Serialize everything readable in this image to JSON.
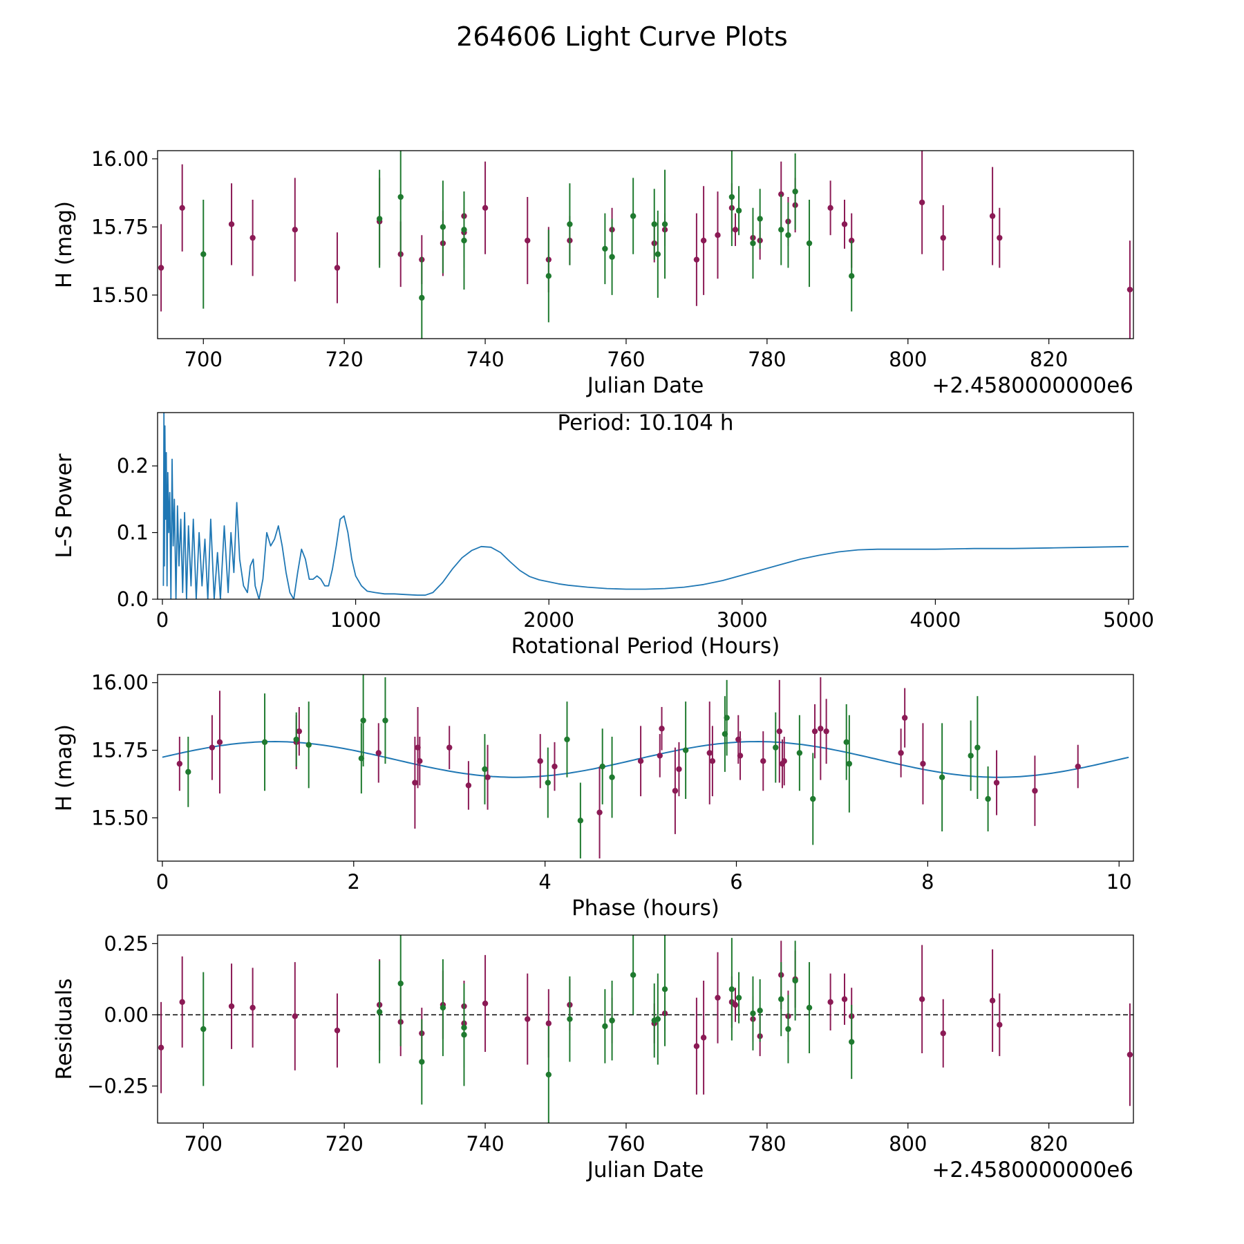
{
  "figure_title": "264606 Light Curve Plots",
  "colors": {
    "purple": "#8b1a55",
    "green": "#1f7a2f",
    "line": "#1f77b4",
    "axis": "#000000"
  },
  "chart_data": [
    {
      "id": "lightcurve",
      "type": "scatter",
      "title": "",
      "xlabel": "Julian Date",
      "ylabel": "H (mag)",
      "offset_text": "+2.4580000000e6",
      "xlim": [
        693.5,
        832
      ],
      "ylim": [
        15.34,
        16.03
      ],
      "xticks": [
        700,
        720,
        740,
        760,
        780,
        800,
        820
      ],
      "yticks": [
        15.5,
        15.75,
        16.0
      ],
      "ytick_labels": [
        "15.50",
        "15.75",
        "16.00"
      ],
      "series": [
        {
          "name": "purple",
          "color": "purple",
          "x": [
            694,
            697,
            704,
            707,
            713,
            719,
            725,
            728,
            731,
            734,
            737,
            737,
            740,
            746,
            749,
            752,
            758,
            764,
            765.5,
            770,
            771,
            773,
            775,
            775.5,
            778,
            779,
            782,
            783,
            784,
            789,
            791,
            792,
            802,
            805,
            812,
            813,
            831.5
          ],
          "y": [
            15.6,
            15.82,
            15.76,
            15.71,
            15.74,
            15.6,
            15.77,
            15.65,
            15.63,
            15.69,
            15.79,
            15.73,
            15.82,
            15.7,
            15.63,
            15.7,
            15.74,
            15.69,
            15.74,
            15.63,
            15.7,
            15.72,
            15.82,
            15.74,
            15.71,
            15.7,
            15.87,
            15.77,
            15.83,
            15.82,
            15.76,
            15.7,
            15.84,
            15.71,
            15.79,
            15.71,
            15.52
          ],
          "err": [
            0.16,
            0.16,
            0.15,
            0.14,
            0.19,
            0.13,
            0.16,
            0.12,
            0.09,
            0.12,
            0.09,
            0.09,
            0.17,
            0.16,
            0.12,
            0.09,
            0.08,
            0.07,
            0.06,
            0.17,
            0.2,
            0.16,
            0.09,
            0.06,
            0.08,
            0.07,
            0.12,
            0.09,
            0.1,
            0.1,
            0.09,
            0.1,
            0.19,
            0.12,
            0.18,
            0.11,
            0.18
          ]
        },
        {
          "name": "green",
          "color": "green",
          "x": [
            700,
            725,
            728,
            731,
            734,
            737,
            737,
            749,
            752,
            757,
            758,
            761,
            764,
            764.5,
            765.5,
            775,
            776,
            778,
            779,
            782,
            783,
            784,
            786,
            792
          ],
          "y": [
            15.65,
            15.78,
            15.86,
            15.49,
            15.75,
            15.7,
            15.74,
            15.57,
            15.76,
            15.67,
            15.64,
            15.79,
            15.76,
            15.65,
            15.76,
            15.86,
            15.81,
            15.69,
            15.78,
            15.74,
            15.72,
            15.88,
            15.69,
            15.57
          ],
          "err": [
            0.2,
            0.18,
            0.22,
            0.15,
            0.17,
            0.18,
            0.14,
            0.17,
            0.15,
            0.13,
            0.14,
            0.14,
            0.13,
            0.16,
            0.2,
            0.18,
            0.09,
            0.13,
            0.11,
            0.13,
            0.12,
            0.14,
            0.16,
            0.13
          ]
        }
      ]
    },
    {
      "id": "periodogram",
      "type": "line",
      "title": "",
      "xlabel": "Rotational Period (Hours)",
      "ylabel": "L-S Power",
      "annotation": "Period: 10.104 h",
      "xlim": [
        -25,
        5025
      ],
      "ylim": [
        0,
        0.28
      ],
      "xticks": [
        0,
        1000,
        2000,
        3000,
        4000,
        5000
      ],
      "yticks": [
        0.0,
        0.1,
        0.2
      ],
      "ytick_labels": [
        "0.0",
        "0.1",
        "0.2"
      ],
      "series": [
        {
          "name": "L-S Power",
          "color": "line",
          "x": [
            5,
            8,
            10,
            13,
            16,
            20,
            24,
            28,
            33,
            38,
            44,
            50,
            56,
            62,
            70,
            78,
            86,
            95,
            105,
            115,
            125,
            135,
            148,
            160,
            175,
            190,
            205,
            220,
            235,
            250,
            268,
            285,
            300,
            320,
            340,
            355,
            370,
            385,
            400,
            420,
            440,
            455,
            470,
            480,
            500,
            520,
            540,
            560,
            580,
            600,
            620,
            640,
            660,
            680,
            700,
            720,
            740,
            760,
            780,
            800,
            820,
            840,
            860,
            880,
            900,
            920,
            940,
            960,
            980,
            1000,
            1030,
            1060,
            1100,
            1150,
            1200,
            1260,
            1320,
            1360,
            1400,
            1450,
            1500,
            1550,
            1600,
            1650,
            1700,
            1750,
            1800,
            1850,
            1900,
            1950,
            2000,
            2050,
            2100,
            2200,
            2300,
            2400,
            2500,
            2600,
            2700,
            2800,
            2900,
            3000,
            3100,
            3200,
            3300,
            3400,
            3500,
            3600,
            3700,
            3800,
            3900,
            4000,
            4200,
            4400,
            4600,
            4800,
            5000
          ],
          "y": [
            0.02,
            0.28,
            0.05,
            0.26,
            0.12,
            0.22,
            0.02,
            0.19,
            0.1,
            0.16,
            0.0,
            0.21,
            0.08,
            0.15,
            0.0,
            0.14,
            0.05,
            0.12,
            0.01,
            0.13,
            0.0,
            0.11,
            0.02,
            0.12,
            0.0,
            0.1,
            0.02,
            0.09,
            0.0,
            0.12,
            0.0,
            0.07,
            0.0,
            0.11,
            0.01,
            0.1,
            0.04,
            0.145,
            0.06,
            0.02,
            0.01,
            0.05,
            0.06,
            0.02,
            0.0,
            0.03,
            0.1,
            0.08,
            0.09,
            0.11,
            0.08,
            0.04,
            0.01,
            0.0,
            0.04,
            0.075,
            0.06,
            0.03,
            0.03,
            0.035,
            0.03,
            0.02,
            0.02,
            0.045,
            0.08,
            0.12,
            0.125,
            0.1,
            0.06,
            0.035,
            0.02,
            0.012,
            0.01,
            0.008,
            0.008,
            0.007,
            0.006,
            0.006,
            0.01,
            0.025,
            0.045,
            0.062,
            0.073,
            0.079,
            0.078,
            0.07,
            0.056,
            0.043,
            0.034,
            0.029,
            0.026,
            0.023,
            0.021,
            0.018,
            0.016,
            0.015,
            0.015,
            0.016,
            0.018,
            0.022,
            0.028,
            0.036,
            0.044,
            0.052,
            0.06,
            0.066,
            0.071,
            0.074,
            0.075,
            0.075,
            0.075,
            0.075,
            0.076,
            0.076,
            0.077,
            0.078,
            0.079
          ]
        }
      ]
    },
    {
      "id": "phased",
      "type": "scatter",
      "title": "",
      "xlabel": "Phase (hours)",
      "ylabel": "H (mag)",
      "xlim": [
        -0.05,
        10.15
      ],
      "ylim": [
        15.34,
        16.03
      ],
      "xticks": [
        0,
        2,
        4,
        6,
        8,
        10
      ],
      "yticks": [
        15.5,
        15.75,
        16.0
      ],
      "ytick_labels": [
        "15.50",
        "15.75",
        "16.00"
      ],
      "series": [
        {
          "name": "purple",
          "color": "purple",
          "x": [
            0.18,
            0.52,
            0.6,
            1.4,
            1.43,
            2.26,
            2.64,
            2.67,
            2.69,
            3.0,
            3.2,
            3.4,
            3.95,
            4.1,
            4.57,
            5.0,
            5.2,
            5.22,
            5.36,
            5.4,
            5.72,
            5.75,
            6.02,
            6.04,
            6.28,
            6.45,
            6.48,
            6.5,
            6.82,
            6.88,
            6.94,
            7.72,
            7.76,
            7.95,
            8.72,
            9.12,
            9.57
          ],
          "y": [
            15.7,
            15.76,
            15.78,
            15.78,
            15.82,
            15.74,
            15.63,
            15.76,
            15.71,
            15.76,
            15.62,
            15.65,
            15.71,
            15.69,
            15.52,
            15.71,
            15.73,
            15.83,
            15.6,
            15.68,
            15.74,
            15.71,
            15.79,
            15.73,
            15.71,
            15.82,
            15.7,
            15.71,
            15.82,
            15.83,
            15.82,
            15.74,
            15.87,
            15.7,
            15.63,
            15.6,
            15.69
          ],
          "err": [
            0.1,
            0.12,
            0.19,
            0.1,
            0.09,
            0.11,
            0.17,
            0.15,
            0.09,
            0.08,
            0.09,
            0.12,
            0.1,
            0.09,
            0.17,
            0.13,
            0.08,
            0.08,
            0.16,
            0.1,
            0.19,
            0.13,
            0.09,
            0.09,
            0.11,
            0.19,
            0.09,
            0.09,
            0.1,
            0.19,
            0.12,
            0.09,
            0.11,
            0.15,
            0.12,
            0.13,
            0.08
          ]
        },
        {
          "name": "green",
          "color": "green",
          "x": [
            0.27,
            1.07,
            1.4,
            1.53,
            2.08,
            2.1,
            2.33,
            3.37,
            4.03,
            4.23,
            4.37,
            4.6,
            4.7,
            5.47,
            5.88,
            5.9,
            6.41,
            6.66,
            6.8,
            7.15,
            7.18,
            8.15,
            8.45,
            8.52,
            8.63
          ],
          "y": [
            15.67,
            15.78,
            15.79,
            15.77,
            15.72,
            15.86,
            15.86,
            15.68,
            15.63,
            15.79,
            15.49,
            15.69,
            15.65,
            15.75,
            15.81,
            15.87,
            15.76,
            15.74,
            15.57,
            15.78,
            15.7,
            15.65,
            15.73,
            15.76,
            15.57
          ],
          "err": [
            0.13,
            0.18,
            0.1,
            0.16,
            0.13,
            0.17,
            0.16,
            0.13,
            0.13,
            0.14,
            0.14,
            0.14,
            0.15,
            0.18,
            0.14,
            0.14,
            0.13,
            0.14,
            0.17,
            0.14,
            0.18,
            0.2,
            0.13,
            0.19,
            0.12
          ]
        }
      ],
      "fit": {
        "name": "sinusoid fit",
        "color": "line",
        "mean": 15.716,
        "amplitude": 0.066,
        "period": 5.052,
        "phase_offset": -0.1
      }
    },
    {
      "id": "residuals",
      "type": "scatter",
      "title": "",
      "xlabel": "Julian Date",
      "ylabel": "Residuals",
      "offset_text": "+2.4580000000e6",
      "xlim": [
        693.5,
        832
      ],
      "ylim": [
        -0.38,
        0.28
      ],
      "xticks": [
        700,
        720,
        740,
        760,
        780,
        800,
        820
      ],
      "yticks": [
        -0.25,
        0.0,
        0.25
      ],
      "ytick_labels": [
        "−0.25",
        "0.00",
        "0.25"
      ],
      "zero_line": 0.0,
      "series": [
        {
          "name": "purple",
          "color": "purple",
          "x": [
            694,
            697,
            704,
            707,
            713,
            719,
            725,
            728,
            731,
            734,
            737,
            737,
            740,
            746,
            749,
            752,
            758,
            764,
            765.5,
            770,
            771,
            773,
            775,
            775.5,
            778,
            779,
            782,
            783,
            784,
            789,
            791,
            792,
            802,
            805,
            812,
            813,
            831.5
          ],
          "y": [
            -0.115,
            0.045,
            0.03,
            0.025,
            -0.005,
            -0.055,
            0.035,
            -0.025,
            -0.065,
            0.035,
            0.03,
            -0.03,
            0.04,
            -0.015,
            -0.03,
            0.035,
            -0.02,
            -0.03,
            0.005,
            -0.11,
            -0.08,
            0.06,
            0.045,
            0.035,
            -0.015,
            -0.075,
            0.14,
            -0.005,
            0.125,
            0.045,
            0.055,
            -0.005,
            0.055,
            -0.065,
            0.05,
            -0.035,
            -0.14
          ],
          "err": [
            0.16,
            0.16,
            0.15,
            0.14,
            0.19,
            0.13,
            0.16,
            0.12,
            0.09,
            0.12,
            0.09,
            0.09,
            0.17,
            0.16,
            0.12,
            0.09,
            0.08,
            0.07,
            0.06,
            0.17,
            0.2,
            0.16,
            0.09,
            0.06,
            0.08,
            0.07,
            0.12,
            0.09,
            0.1,
            0.1,
            0.09,
            0.1,
            0.19,
            0.12,
            0.18,
            0.11,
            0.18
          ]
        },
        {
          "name": "green",
          "color": "green",
          "x": [
            700,
            725,
            728,
            731,
            734,
            737,
            737,
            749,
            752,
            757,
            758,
            761,
            764,
            764.5,
            765.5,
            775,
            776,
            778,
            779,
            782,
            783,
            784,
            786,
            792
          ],
          "y": [
            -0.05,
            0.01,
            0.11,
            -0.165,
            0.025,
            -0.07,
            -0.045,
            -0.21,
            -0.015,
            -0.04,
            -0.02,
            0.14,
            -0.02,
            -0.015,
            0.09,
            0.09,
            0.06,
            0.005,
            0.015,
            0.055,
            -0.05,
            0.12,
            0.025,
            -0.095
          ],
          "err": [
            0.2,
            0.18,
            0.22,
            0.15,
            0.17,
            0.18,
            0.14,
            0.17,
            0.15,
            0.13,
            0.14,
            0.14,
            0.13,
            0.16,
            0.2,
            0.18,
            0.09,
            0.13,
            0.11,
            0.13,
            0.12,
            0.14,
            0.16,
            0.13
          ]
        }
      ]
    }
  ]
}
